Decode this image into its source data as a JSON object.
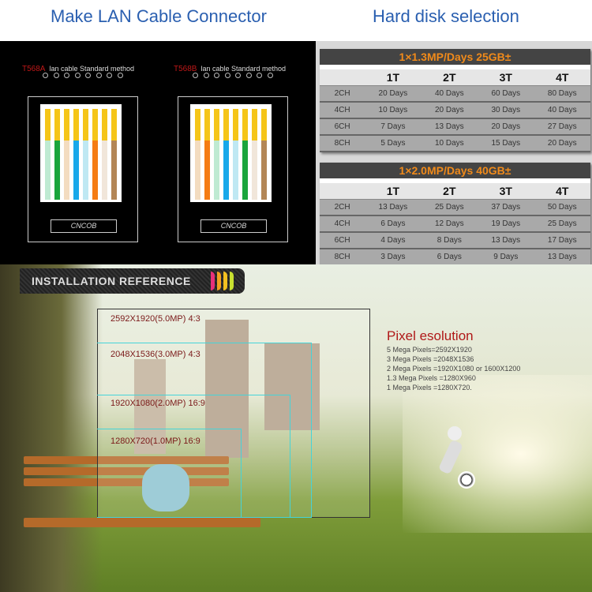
{
  "headings": {
    "lan": "Make LAN Cable Connector",
    "hdd": "Hard disk selection"
  },
  "lan": {
    "standards": [
      {
        "code": "T568A",
        "label": "lan cable Standard method",
        "logo": "CNCOB",
        "wires": [
          "#bfead2",
          "#1aa53c",
          "#f3dcc0",
          "#18a8ea",
          "#bfe8f3",
          "#f57c14",
          "#f1e6da",
          "#b38656"
        ]
      },
      {
        "code": "T568B",
        "label": "lan cable Standard method",
        "logo": "CNCOB",
        "wires": [
          "#f3dcc0",
          "#f57c14",
          "#bfead2",
          "#18a8ea",
          "#bfe8f3",
          "#1aa53c",
          "#f1e6da",
          "#b38656"
        ]
      }
    ]
  },
  "hdd": {
    "tables": [
      {
        "title": "1×1.3MP/Days 25GB±",
        "columns": [
          "",
          "1T",
          "2T",
          "3T",
          "4T"
        ],
        "rows": [
          [
            "2CH",
            "20 Days",
            "40 Days",
            "60 Days",
            "80 Days"
          ],
          [
            "4CH",
            "10 Days",
            "20 Days",
            "30 Days",
            "40 Days"
          ],
          [
            "6CH",
            "7 Days",
            "13 Days",
            "20 Days",
            "27 Days"
          ],
          [
            "8CH",
            "5 Days",
            "10 Days",
            "15 Days",
            "20 Days"
          ]
        ]
      },
      {
        "title": "1×2.0MP/Days 40GB±",
        "columns": [
          "",
          "1T",
          "2T",
          "3T",
          "4T"
        ],
        "rows": [
          [
            "2CH",
            "13 Days",
            "25 Days",
            "37 Days",
            "50 Days"
          ],
          [
            "4CH",
            "6 Days",
            "12 Days",
            "19 Days",
            "25 Days"
          ],
          [
            "6CH",
            "4 Days",
            "8 Days",
            "13 Days",
            "17 Days"
          ],
          [
            "8CH",
            "3 Days",
            "6 Days",
            "9 Days",
            "13 Days"
          ]
        ]
      }
    ]
  },
  "install": {
    "banner": "INSTALLATION REFERENCE",
    "resolutions": [
      "2592X1920(5.0MP)  4:3",
      "2048X1536(3.0MP)  4:3",
      "1920X1080(2.0MP)  16:9",
      "1280X720(1.0MP)  16:9"
    ],
    "pixel_title": "Pixel esolution",
    "pixel_lines": [
      "5 Mega Pixels=2592X1920",
      "3 Mega Pixels =2048X1536",
      "2 Mega Pixels =1920X1080 or 1600X1200",
      "1.3 Mega Pixels =1280X960",
      "1 Mega Pixels =1280X720."
    ]
  }
}
